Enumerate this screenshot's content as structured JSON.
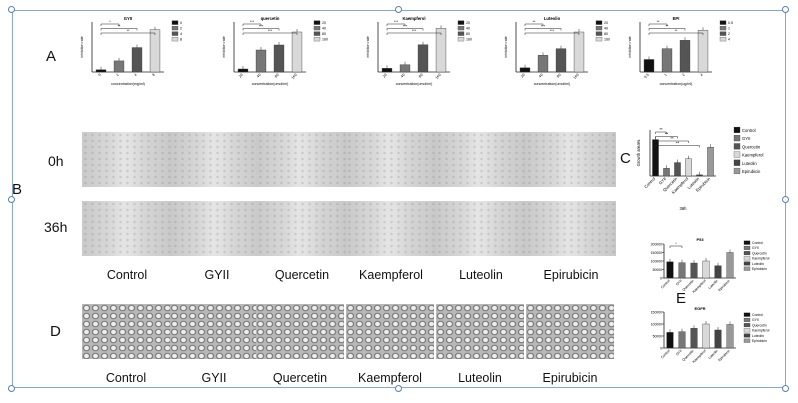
{
  "panels": {
    "A": "A",
    "B": "B",
    "C": "C",
    "D": "D",
    "E": "E"
  },
  "rows": {
    "t0": "0h",
    "t36": "36h"
  },
  "groups": [
    "Control",
    "GYII",
    "Quercetin",
    "Kaempferol",
    "Luteolin",
    "Epirubicin"
  ],
  "chart_data": [
    {
      "type": "bar",
      "panel": "A",
      "title": "GYII",
      "xlabel": "concentration(mg/ml)",
      "ylabel": "inhibition rate",
      "categories": [
        "0",
        "2",
        "4",
        "8"
      ],
      "legend": [
        "0",
        "2",
        "4",
        "8"
      ],
      "legend_position": "right",
      "values": [
        0.02,
        0.1,
        0.22,
        0.38
      ],
      "ylim": [
        0,
        0.45
      ],
      "colors": [
        "#111111",
        "#777777",
        "#555555",
        "#d9d9d9"
      ],
      "significance": [
        "*",
        "**",
        "**"
      ]
    },
    {
      "type": "bar",
      "panel": "A",
      "title": "quercetin",
      "xlabel": "concentration(umol/ml)",
      "ylabel": "inhibition rate",
      "categories": [
        "20",
        "40",
        "80",
        "160"
      ],
      "legend": [
        "20",
        "40",
        "80",
        "160"
      ],
      "legend_position": "right",
      "values": [
        0.03,
        0.22,
        0.27,
        0.4
      ],
      "ylim": [
        0,
        0.5
      ],
      "colors": [
        "#111111",
        "#777777",
        "#555555",
        "#d9d9d9"
      ],
      "significance": [
        "***",
        "***",
        "***"
      ]
    },
    {
      "type": "bar",
      "panel": "A",
      "title": "Kaempferol",
      "xlabel": "concentration(umol/ml)",
      "ylabel": "inhibition rate",
      "categories": [
        "20",
        "40",
        "80",
        "160"
      ],
      "legend": [
        "20",
        "40",
        "80",
        "160"
      ],
      "legend_position": "right",
      "values": [
        0.04,
        0.08,
        0.3,
        0.48
      ],
      "ylim": [
        0,
        0.55
      ],
      "colors": [
        "#111111",
        "#777777",
        "#555555",
        "#d9d9d9"
      ],
      "significance": [
        "***",
        "***",
        "***"
      ]
    },
    {
      "type": "bar",
      "panel": "A",
      "title": "Luteolin",
      "xlabel": "concentration(umol/ml)",
      "ylabel": "inhibition rate",
      "categories": [
        "20",
        "40",
        "80",
        "160"
      ],
      "legend": [
        "20",
        "40",
        "80",
        "160"
      ],
      "legend_position": "right",
      "values": [
        0.05,
        0.2,
        0.28,
        0.48
      ],
      "ylim": [
        0,
        0.6
      ],
      "colors": [
        "#111111",
        "#777777",
        "#555555",
        "#d9d9d9"
      ],
      "significance": [
        "**",
        "***",
        "***"
      ]
    },
    {
      "type": "bar",
      "panel": "A",
      "title": "EPI",
      "xlabel": "concentration(ug/ml)",
      "ylabel": "inhibition rate",
      "categories": [
        "0.5",
        "1",
        "2",
        "4"
      ],
      "legend": [
        "0.5",
        "1",
        "2",
        "4"
      ],
      "legend_position": "right",
      "values": [
        0.15,
        0.28,
        0.38,
        0.5
      ],
      "ylim": [
        0,
        0.6
      ],
      "colors": [
        "#111111",
        "#777777",
        "#555555",
        "#d9d9d9"
      ],
      "significance": [
        "**",
        "**",
        "**"
      ]
    },
    {
      "type": "bar",
      "panel": "C",
      "ylabel": "Growth area%",
      "xlabel": "36h",
      "categories": [
        "Control",
        "GYII",
        "Quercetin",
        "Kaempferol",
        "Luteolin",
        "Epirubicin"
      ],
      "legend": [
        "Control",
        "GYII",
        "Quercetin",
        "Kaempferol",
        "Luteolin",
        "Epirubicin"
      ],
      "legend_position": "right",
      "values": [
        95,
        20,
        35,
        45,
        3,
        75
      ],
      "ylim": [
        0,
        120
      ],
      "colors": [
        "#111111",
        "#777777",
        "#555555",
        "#d9d9d9",
        "#444444",
        "#999999"
      ],
      "significance": [
        "**",
        "**",
        "**",
        "**"
      ]
    },
    {
      "type": "bar",
      "panel": "E",
      "title": "P53",
      "categories": [
        "Control",
        "GYII",
        "Quercetin",
        "Kaempferol",
        "Luteolin",
        "Epirubicin"
      ],
      "legend": [
        "Control",
        "GYII",
        "Quercetin",
        "Kaempferol",
        "Luteolin",
        "Epirubicin"
      ],
      "legend_position": "right",
      "values": [
        95000,
        90000,
        88000,
        100000,
        72000,
        150000
      ],
      "yticks": [
        "0",
        "50000",
        "100000",
        "150000",
        "200000"
      ],
      "ylim": [
        0,
        200000
      ],
      "colors": [
        "#111111",
        "#777777",
        "#555555",
        "#d9d9d9",
        "#444444",
        "#999999"
      ],
      "significance": [
        "*"
      ]
    },
    {
      "type": "bar",
      "panel": "E",
      "title": "EGFR",
      "categories": [
        "Control",
        "GYII",
        "Quercetin",
        "Kaempferol",
        "Luteolin",
        "Epirubicin"
      ],
      "legend": [
        "Control",
        "GYII",
        "Quercetin",
        "Kaempferol",
        "Luteolin",
        "Epirubicin"
      ],
      "legend_position": "right",
      "values": [
        65000,
        68000,
        82000,
        100000,
        75000,
        98000
      ],
      "yticks": [
        "0",
        "50000",
        "100000",
        "150000"
      ],
      "ylim": [
        0,
        150000
      ],
      "colors": [
        "#111111",
        "#777777",
        "#555555",
        "#d9d9d9",
        "#444444",
        "#999999"
      ],
      "significance": []
    }
  ]
}
